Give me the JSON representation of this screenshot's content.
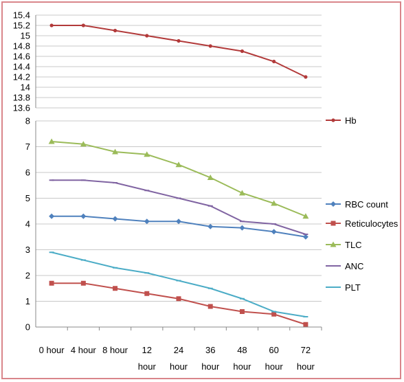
{
  "chart_data": [
    {
      "type": "line",
      "title": "",
      "xlabel": "",
      "ylabel": "",
      "categories": [
        [
          "0 hour"
        ],
        [
          "4 hour"
        ],
        [
          "8 hour"
        ],
        [
          "12",
          "hour"
        ],
        [
          "24",
          "hour"
        ],
        [
          "36",
          "hour"
        ],
        [
          "48",
          "hour"
        ],
        [
          "60",
          "hour"
        ],
        [
          "72",
          "hour"
        ]
      ],
      "ylim": [
        13.6,
        15.4
      ],
      "yticks": [
        "13.6",
        "13.8",
        "14",
        "14.2",
        "14.4",
        "14.6",
        "14.8",
        "15",
        "15.2",
        "15.4"
      ],
      "grid": true,
      "legend_position": "right",
      "series": [
        {
          "name": "Hb",
          "color": "#b23a3a",
          "marker": "dot",
          "values": [
            15.2,
            15.2,
            15.1,
            15.0,
            14.9,
            14.8,
            14.7,
            14.5,
            14.2
          ]
        }
      ]
    },
    {
      "type": "line",
      "title": "",
      "xlabel": "",
      "ylabel": "",
      "categories": [
        [
          "0 hour"
        ],
        [
          "4 hour"
        ],
        [
          "8 hour"
        ],
        [
          "12",
          "hour"
        ],
        [
          "24",
          "hour"
        ],
        [
          "36",
          "hour"
        ],
        [
          "48",
          "hour"
        ],
        [
          "60",
          "hour"
        ],
        [
          "72",
          "hour"
        ]
      ],
      "ylim": [
        0,
        8
      ],
      "yticks": [
        "0",
        "1",
        "2",
        "3",
        "4",
        "5",
        "6",
        "7",
        "8"
      ],
      "grid": true,
      "legend_position": "right",
      "series": [
        {
          "name": "RBC count",
          "color": "#4f81bd",
          "marker": "diamond",
          "values": [
            4.3,
            4.3,
            4.2,
            4.1,
            4.1,
            3.9,
            3.85,
            3.7,
            3.5
          ]
        },
        {
          "name": "Reticulocytes",
          "color": "#c0504d",
          "marker": "square",
          "values": [
            1.7,
            1.7,
            1.5,
            1.3,
            1.1,
            0.8,
            0.6,
            0.5,
            0.1
          ]
        },
        {
          "name": "TLC",
          "color": "#9bbb59",
          "marker": "triangle",
          "values": [
            7.2,
            7.1,
            6.8,
            6.7,
            6.3,
            5.8,
            5.2,
            4.8,
            4.3
          ]
        },
        {
          "name": "ANC",
          "color": "#8064a2",
          "marker": "dash",
          "values": [
            5.7,
            5.7,
            5.6,
            5.3,
            5.0,
            4.7,
            4.1,
            4.0,
            3.6
          ]
        },
        {
          "name": "PLT",
          "color": "#4bacc6",
          "marker": "dash",
          "values": [
            2.9,
            2.6,
            2.3,
            2.1,
            1.8,
            1.5,
            1.1,
            0.6,
            0.4
          ]
        }
      ]
    }
  ]
}
